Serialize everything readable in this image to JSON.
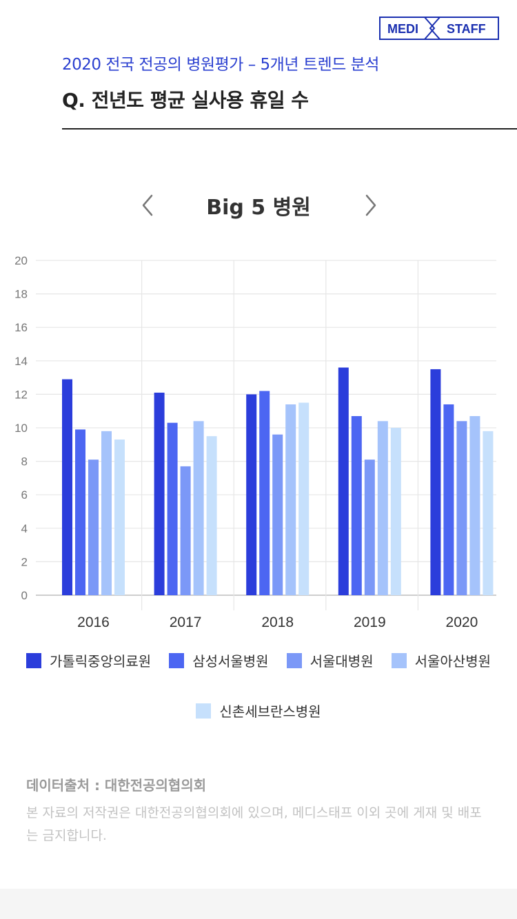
{
  "brand": {
    "left": "MEDI",
    "right": "STAFF",
    "color": "#1a2fb0"
  },
  "header": {
    "subtitle": "2020 전국 전공의 병원평가 – 5개년 트렌드 분석",
    "question": "Q. 전년도 평균 실사용 휴일 수"
  },
  "nav": {
    "prev_icon": "chevron-left-icon",
    "next_icon": "chevron-right-icon"
  },
  "chart_data": {
    "type": "bar",
    "title": "Big 5 병원",
    "categories": [
      "2016",
      "2017",
      "2018",
      "2019",
      "2020"
    ],
    "series": [
      {
        "name": "가톨릭중앙의료원",
        "color": "#2b3ddb",
        "values": [
          12.9,
          12.1,
          12.0,
          13.6,
          13.5
        ]
      },
      {
        "name": "삼성서울병원",
        "color": "#4c66f2",
        "values": [
          9.9,
          10.3,
          12.2,
          10.7,
          11.4
        ]
      },
      {
        "name": "서울대병원",
        "color": "#7b98f7",
        "values": [
          8.1,
          7.7,
          9.6,
          8.1,
          10.4
        ]
      },
      {
        "name": "서울아산병원",
        "color": "#a5c3fb",
        "values": [
          9.8,
          10.4,
          11.4,
          10.4,
          10.7
        ]
      },
      {
        "name": "신촌세브란스병원",
        "color": "#c6e0fc",
        "values": [
          9.3,
          9.5,
          11.5,
          10.0,
          9.8
        ]
      }
    ],
    "ylim": [
      0,
      20
    ],
    "yticks": [
      0,
      2,
      4,
      6,
      8,
      10,
      12,
      14,
      16,
      18,
      20
    ],
    "grid": true,
    "legend_position": "bottom"
  },
  "footer": {
    "source": "데이터출처 : 대한전공의협의회",
    "copyright": "본 자료의 저작권은 대한전공의협의회에 있으며, 메디스태프 이외 곳에 게재 및 배포는 금지합니다."
  }
}
